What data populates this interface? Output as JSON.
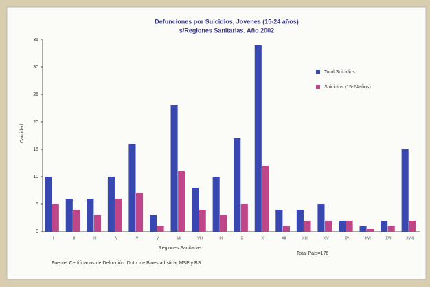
{
  "chart_data": {
    "type": "bar",
    "title": [
      "Defunciones por Suicidios, Jovenes (15-24 años)",
      "s/Regiones Sanitarias. Año 2002"
    ],
    "xlabel": "Regiones Sanitarias",
    "ylabel": "Cantidad",
    "annotation": "Total País=176",
    "source": "Fuente: Certificados de Defunción. Dpto. de Bioestadística. MSP y BS",
    "categories": [
      "I",
      "II",
      "III",
      "IV",
      "V",
      "VI",
      "VII",
      "VIII",
      "IX",
      "X",
      "XI",
      "XII",
      "XIII",
      "XIV",
      "XV",
      "XVI",
      "XVII",
      "XVIII"
    ],
    "series": [
      {
        "name": "Total Suicidios",
        "color": "#3848b0",
        "values": [
          10,
          6,
          6,
          10,
          16,
          3,
          23,
          8,
          10,
          17,
          34,
          4,
          4,
          5,
          2,
          1,
          2,
          15
        ]
      },
      {
        "name": "Suicidios (15-24años)",
        "color": "#c0468a",
        "values": [
          5,
          4,
          3,
          6,
          7,
          1,
          11,
          4,
          3,
          5,
          12,
          1,
          2,
          2,
          2,
          0.5,
          1,
          2
        ]
      }
    ],
    "ylim": [
      0,
      35
    ],
    "yticks": [
      0,
      5,
      10,
      15,
      20,
      25,
      30,
      35
    ],
    "legend": "upper right"
  }
}
